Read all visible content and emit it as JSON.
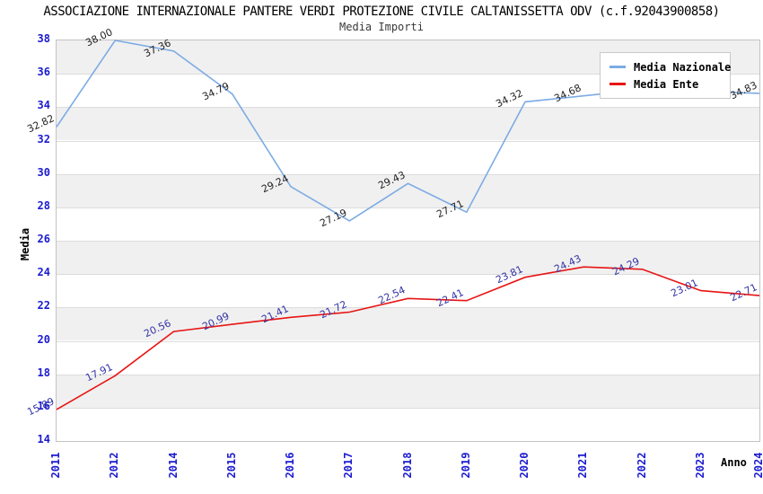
{
  "header": {
    "title": "ASSOCIAZIONE INTERNAZIONALE PANTERE VERDI PROTEZIONE CIVILE CALTANISSETTA ODV (c.f.92043900858)",
    "subtitle": "Media Importi"
  },
  "colors": {
    "nazionale_line": "#7cabe4",
    "ente_line": "#e81414",
    "tick_label": "#1b1bd0",
    "nazionale_point_label": "#1f1f1f",
    "ente_point_label": "#3232a6",
    "band_gray": "#f0f0f0",
    "gridline": "#dcdcdc"
  },
  "chart_data": {
    "type": "line",
    "title": "ASSOCIAZIONE INTERNAZIONALE PANTERE VERDI PROTEZIONE CIVILE CALTANISSETTA ODV (c.f.92043900858)",
    "subtitle": "Media Importi",
    "xlabel": "Anno",
    "ylabel": "Media",
    "x": [
      "2011",
      "2012",
      "2014",
      "2015",
      "2016",
      "2017",
      "2018",
      "2019",
      "2020",
      "2021",
      "2022",
      "2023",
      "2024"
    ],
    "ylim": [
      14,
      38
    ],
    "y_tick_step": 2,
    "grid": true,
    "legend_position": "top-right-inside",
    "series": [
      {
        "name": "Media Nazionale",
        "color": "#7cabe4",
        "label_color": "#1f1f1f",
        "values": [
          32.82,
          38.0,
          37.36,
          34.79,
          29.24,
          27.19,
          29.43,
          27.71,
          34.32,
          34.68,
          35.05,
          34.95,
          34.83
        ],
        "labels": [
          "32.82",
          "38.00",
          "37.36",
          "34.79",
          "29.24",
          "27.19",
          "29.43",
          "27.71",
          "34.32",
          "34.68",
          null,
          null,
          "34.83"
        ]
      },
      {
        "name": "Media Ente",
        "color": "#e81414",
        "label_color": "#3232a6",
        "values": [
          15.89,
          17.91,
          20.56,
          20.99,
          21.41,
          21.72,
          22.54,
          22.41,
          23.81,
          24.43,
          24.29,
          23.01,
          22.71
        ],
        "labels": [
          "15.89",
          "17.91",
          "20.56",
          "20.99",
          "21.41",
          "21.72",
          "22.54",
          "22.41",
          "23.81",
          "24.43",
          "24.29",
          "23.01",
          "22.71"
        ]
      }
    ]
  }
}
